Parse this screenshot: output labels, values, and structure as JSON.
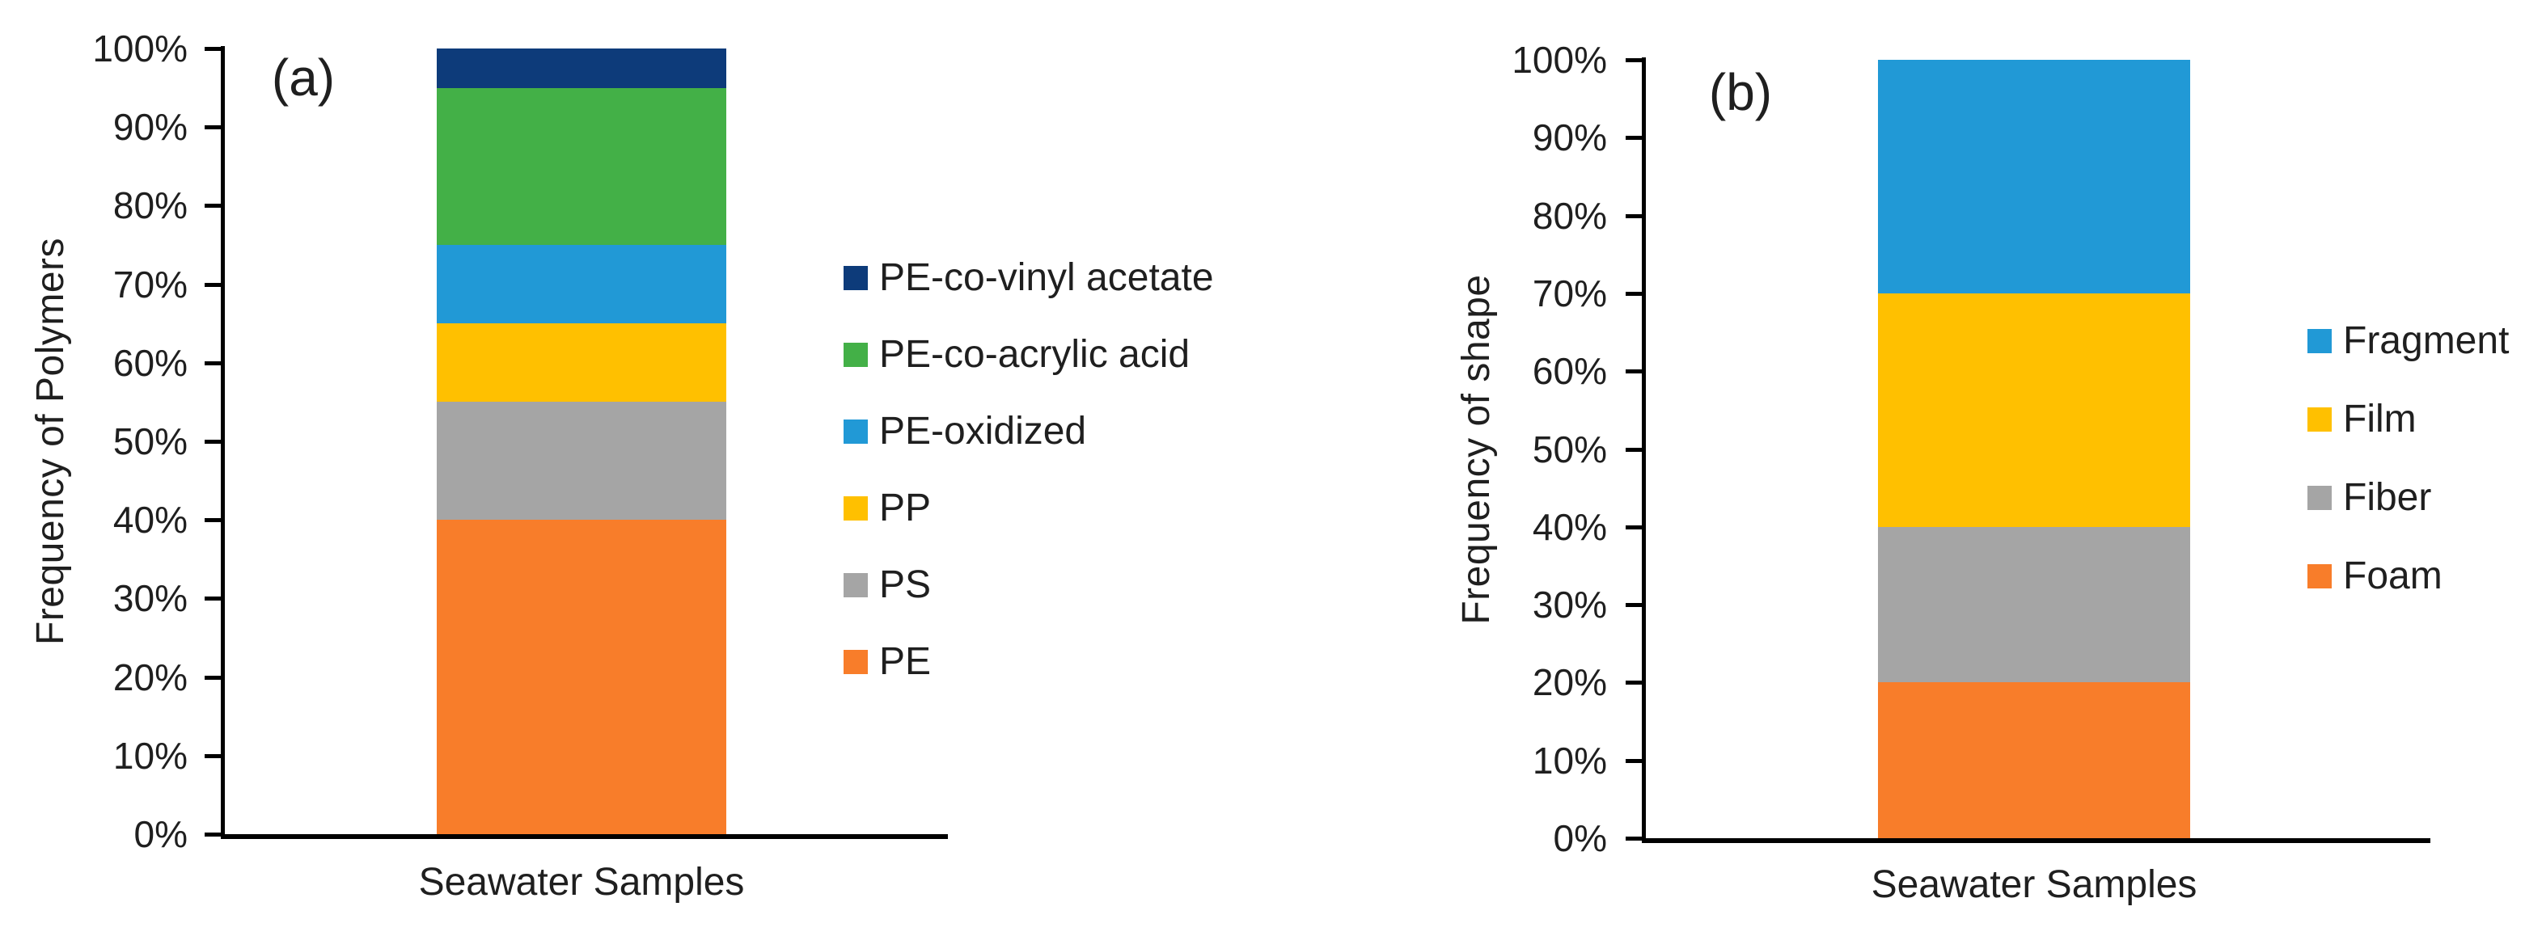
{
  "chart_data": [
    {
      "id": "a",
      "type": "bar",
      "stacked": true,
      "panel_label": "(a)",
      "ylabel": "Frequency of Polymers",
      "xlabel": "",
      "categories": [
        "Seawater Samples"
      ],
      "series": [
        {
          "name": "PE",
          "color": "#F87D2A",
          "values": [
            40
          ]
        },
        {
          "name": "PS",
          "color": "#A5A5A5",
          "values": [
            15
          ]
        },
        {
          "name": "PP",
          "color": "#FFC000",
          "values": [
            10
          ]
        },
        {
          "name": "PE-oxidized",
          "color": "#2199D6",
          "values": [
            10
          ]
        },
        {
          "name": "PE-co-acrylic acid",
          "color": "#43B047",
          "values": [
            20
          ]
        },
        {
          "name": "PE-co-vinyl acetate",
          "color": "#0D3B7A",
          "values": [
            5
          ]
        }
      ],
      "ylim": [
        0,
        100
      ],
      "ytick_step": 10,
      "ytick_labels": [
        "0%",
        "10%",
        "20%",
        "30%",
        "40%",
        "50%",
        "60%",
        "70%",
        "80%",
        "90%",
        "100%"
      ],
      "legend": [
        "PE-co-vinyl acetate",
        "PE-co-acrylic acid",
        "PE-oxidized",
        "PP",
        "PS",
        "PE"
      ],
      "legend_position": "right",
      "grid": false
    },
    {
      "id": "b",
      "type": "bar",
      "stacked": true,
      "panel_label": "(b)",
      "ylabel": "Frequency of shape",
      "xlabel": "",
      "categories": [
        "Seawater Samples"
      ],
      "series": [
        {
          "name": "Foam",
          "color": "#F87D2A",
          "values": [
            20
          ]
        },
        {
          "name": "Fiber",
          "color": "#A5A5A5",
          "values": [
            20
          ]
        },
        {
          "name": "Film",
          "color": "#FFC000",
          "values": [
            30
          ]
        },
        {
          "name": "Fragment",
          "color": "#2199D6",
          "values": [
            30
          ]
        }
      ],
      "ylim": [
        0,
        100
      ],
      "ytick_step": 10,
      "ytick_labels": [
        "0%",
        "10%",
        "20%",
        "30%",
        "40%",
        "50%",
        "60%",
        "70%",
        "80%",
        "90%",
        "100%"
      ],
      "legend": [
        "Fragment",
        "Film",
        "Fiber",
        "Foam"
      ],
      "legend_position": "right",
      "grid": false
    }
  ],
  "colors": {
    "axis": "#000000",
    "text": "#1f1f1f",
    "background": "#ffffff"
  }
}
